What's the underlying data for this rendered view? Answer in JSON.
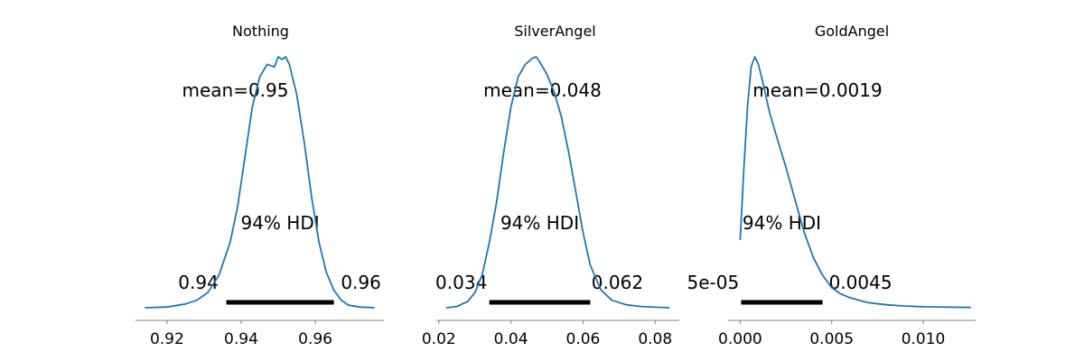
{
  "colors": {
    "density": "#1f77b4",
    "hdi": "#000000",
    "axis": "#808080"
  },
  "chart_data": [
    {
      "type": "line",
      "title": "Nothing",
      "mean_label": "mean=0.95",
      "hdi_text": "94% HDI",
      "hdi": [
        0.936,
        0.965
      ],
      "hdi_labels": [
        "0.94",
        "0.96"
      ],
      "xlim": [
        0.9115,
        0.9785
      ],
      "xticks": [
        0.92,
        0.94,
        0.96
      ],
      "xtick_labels": [
        "0.92",
        "0.94",
        "0.96"
      ],
      "ylim": [
        0,
        1
      ],
      "grid": false,
      "x": [
        0.914,
        0.92,
        0.925,
        0.928,
        0.931,
        0.934,
        0.937,
        0.939,
        0.941,
        0.943,
        0.945,
        0.947,
        0.949,
        0.95,
        0.951,
        0.952,
        0.953,
        0.955,
        0.957,
        0.959,
        0.961,
        0.963,
        0.965,
        0.967,
        0.969,
        0.972,
        0.976
      ],
      "y": [
        0.0,
        0.003,
        0.015,
        0.03,
        0.06,
        0.13,
        0.26,
        0.4,
        0.6,
        0.8,
        0.92,
        0.97,
        0.96,
        1.0,
        0.99,
        1.0,
        0.97,
        0.85,
        0.66,
        0.44,
        0.26,
        0.14,
        0.07,
        0.03,
        0.01,
        0.003,
        0.0
      ]
    },
    {
      "type": "line",
      "title": "SilverAngel",
      "mean_label": "mean=0.048",
      "hdi_text": "94% HDI",
      "hdi": [
        0.034,
        0.062
      ],
      "hdi_labels": [
        "0.034",
        "0.062"
      ],
      "xlim": [
        0.0193,
        0.0867
      ],
      "xticks": [
        0.02,
        0.04,
        0.06,
        0.08
      ],
      "xtick_labels": [
        "0.02",
        "0.04",
        "0.06",
        "0.08"
      ],
      "ylim": [
        0,
        1
      ],
      "grid": false,
      "x": [
        0.022,
        0.025,
        0.028,
        0.03,
        0.032,
        0.034,
        0.036,
        0.038,
        0.04,
        0.042,
        0.044,
        0.046,
        0.047,
        0.048,
        0.05,
        0.052,
        0.054,
        0.056,
        0.058,
        0.06,
        0.062,
        0.065,
        0.068,
        0.072,
        0.076,
        0.08,
        0.084
      ],
      "y": [
        0.0,
        0.005,
        0.025,
        0.06,
        0.13,
        0.26,
        0.42,
        0.62,
        0.8,
        0.92,
        0.97,
        0.995,
        1.0,
        0.98,
        0.93,
        0.86,
        0.76,
        0.62,
        0.46,
        0.3,
        0.17,
        0.07,
        0.03,
        0.012,
        0.005,
        0.002,
        0.0
      ]
    },
    {
      "type": "line",
      "title": "GoldAngel",
      "mean_label": "mean=0.0019",
      "hdi_text": "94% HDI",
      "hdi": [
        5e-05,
        0.0045
      ],
      "hdi_labels": [
        "5e-05",
        "0.0045"
      ],
      "xlim": [
        -0.00066,
        0.01286
      ],
      "xticks": [
        0.0,
        0.005,
        0.01
      ],
      "xtick_labels": [
        "0.000",
        "0.005",
        "0.010"
      ],
      "ylim": [
        0,
        1
      ],
      "grid": false,
      "x": [
        0.0,
        0.0002,
        0.0004,
        0.0006,
        0.0008,
        0.001,
        0.0013,
        0.0016,
        0.002,
        0.0025,
        0.003,
        0.0035,
        0.004,
        0.0045,
        0.005,
        0.0055,
        0.006,
        0.0065,
        0.007,
        0.008,
        0.009,
        0.01,
        0.0115,
        0.0126
      ],
      "y": [
        0.27,
        0.55,
        0.8,
        0.96,
        1.0,
        0.97,
        0.88,
        0.78,
        0.68,
        0.56,
        0.43,
        0.3,
        0.2,
        0.13,
        0.08,
        0.055,
        0.04,
        0.03,
        0.02,
        0.012,
        0.007,
        0.004,
        0.002,
        0.001
      ]
    }
  ]
}
